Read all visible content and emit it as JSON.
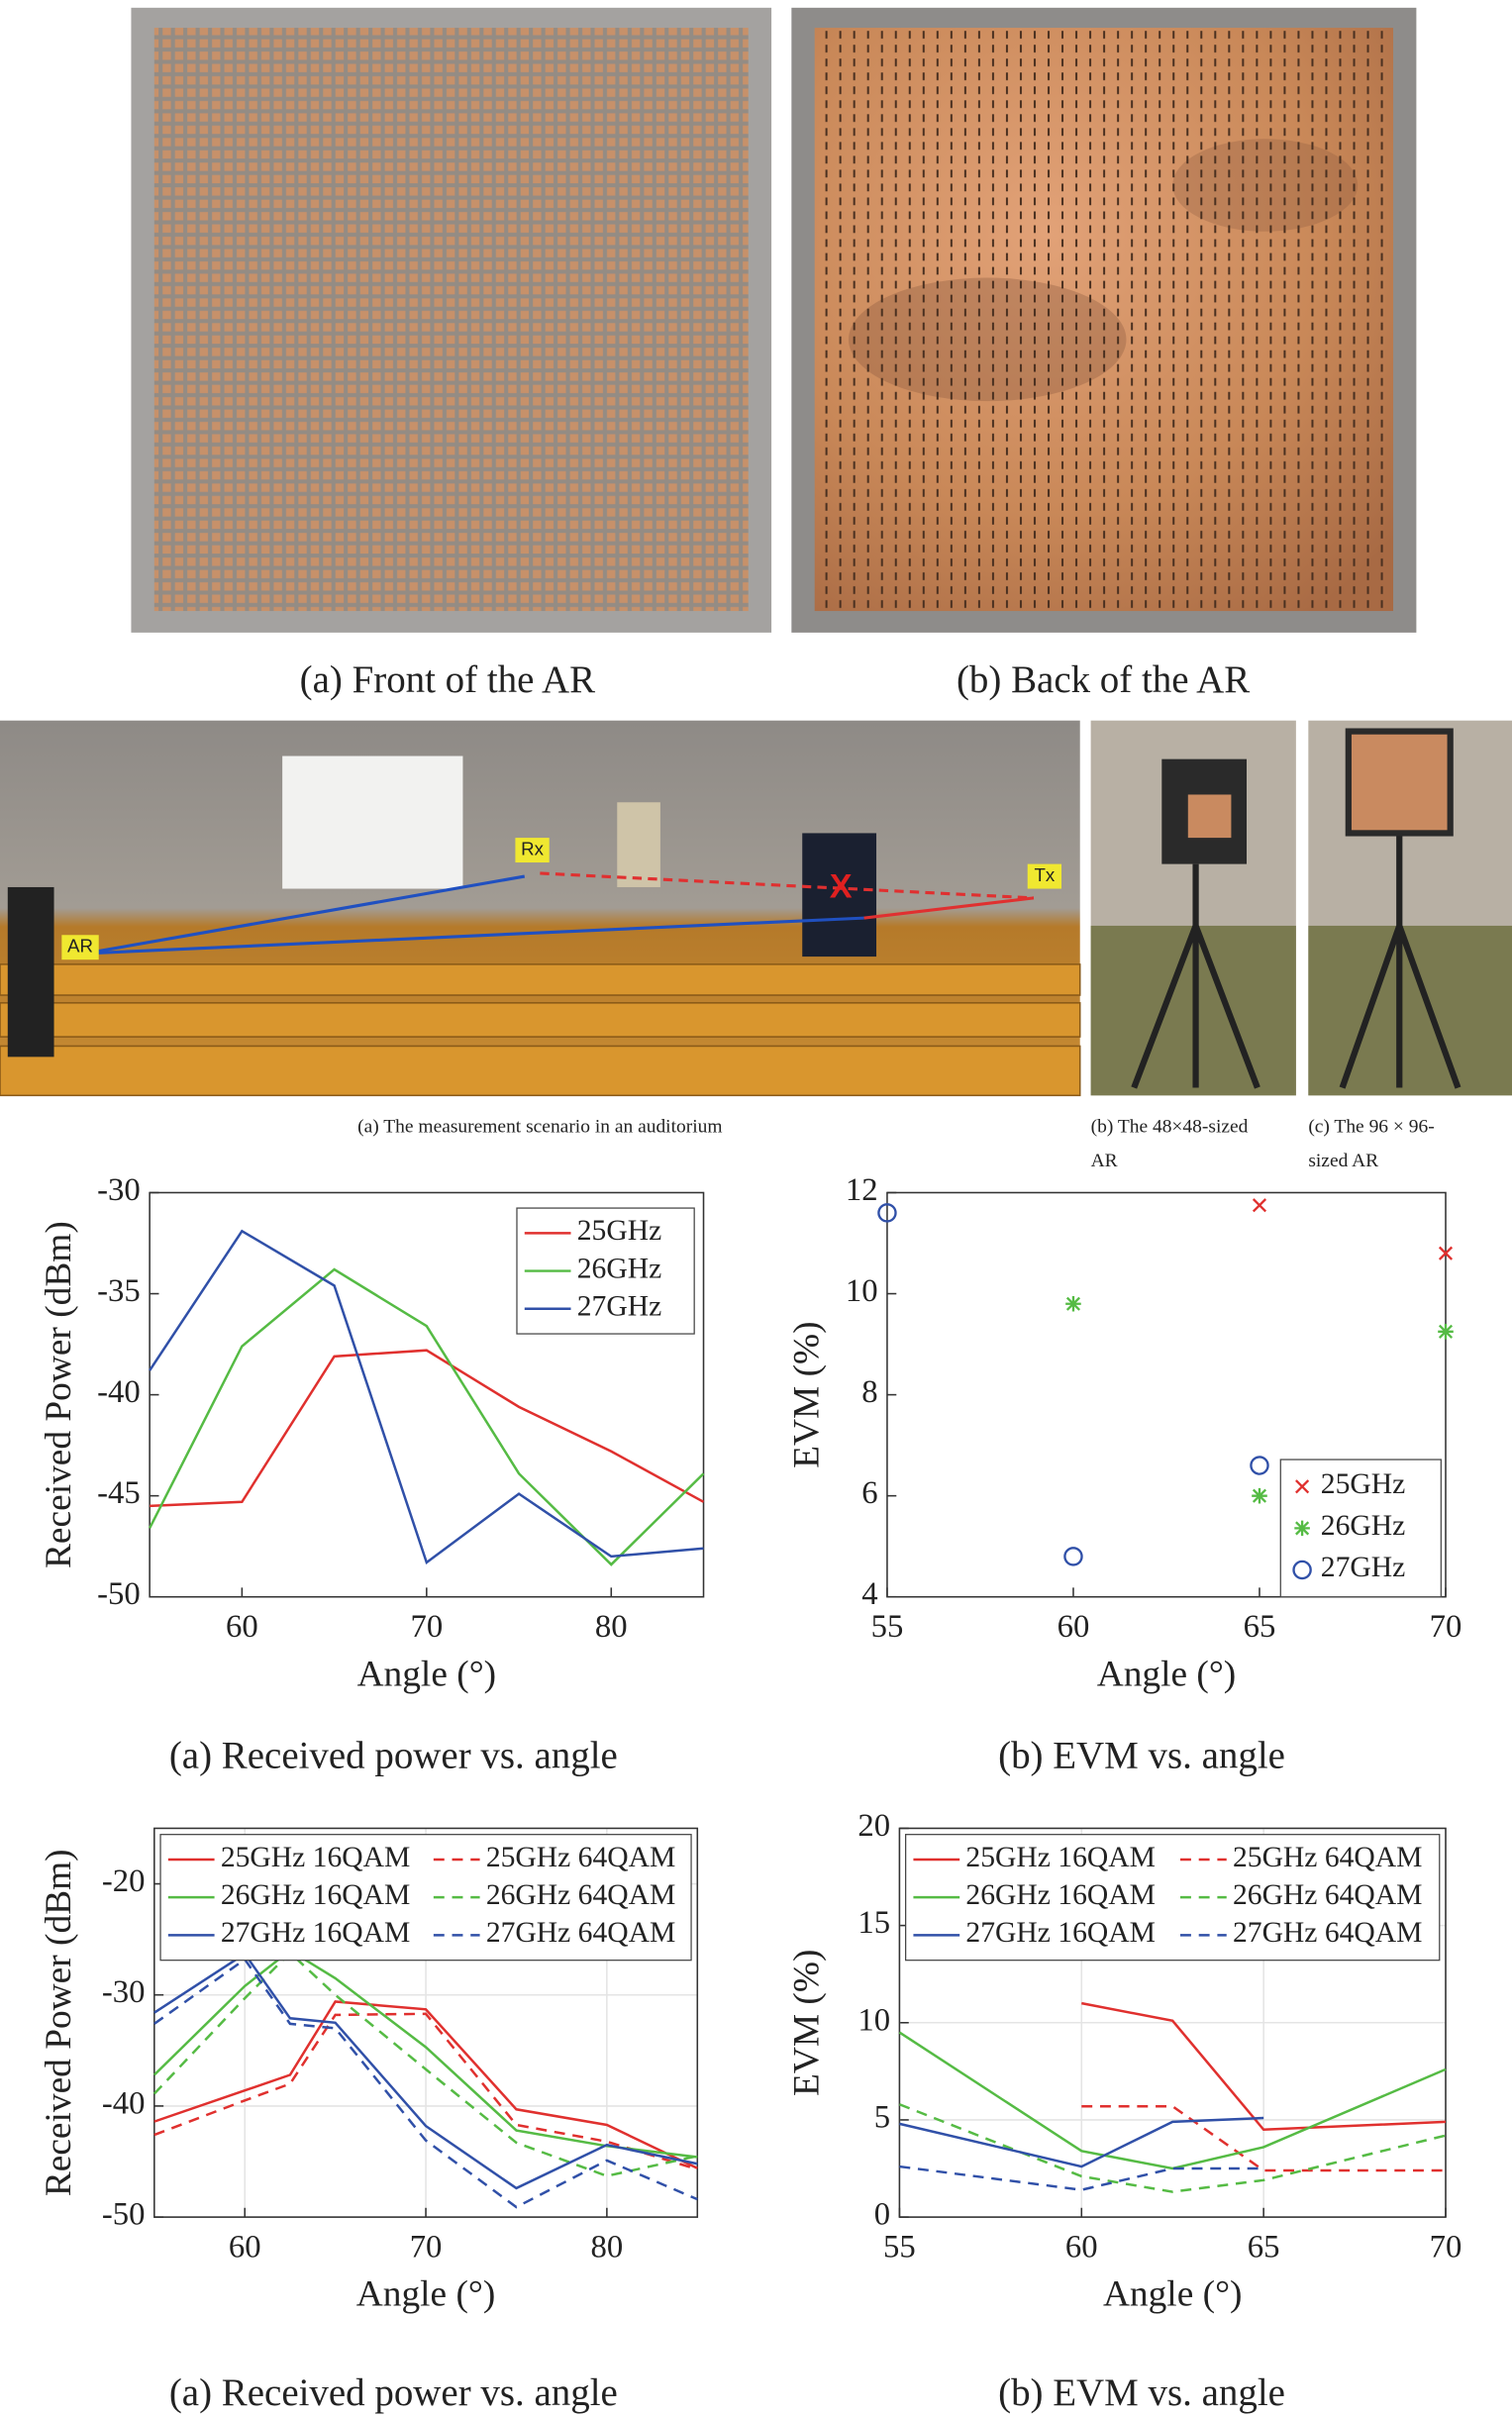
{
  "photos": {
    "front_caption": "(a) Front of the AR",
    "back_caption": "(b) Back of the AR",
    "scenario_caption": "(a) The measurement scenario in an auditorium",
    "small_ar_caption": [
      "(b) The 48×48-sized",
      "AR"
    ],
    "large_ar_caption": [
      "(c) The 96 × 96-",
      "sized AR"
    ],
    "scenario_labels": [
      "AR",
      "Rx",
      "Tx",
      "X"
    ]
  },
  "chart_data": [
    {
      "type": "line",
      "caption": "(a) Received power vs. angle",
      "xlabel": "Angle (°)",
      "ylabel": "Received Power (dBm)",
      "x": [
        55,
        60,
        65,
        70,
        75,
        80,
        85
      ],
      "xlim": [
        55,
        85
      ],
      "xticks": [
        60,
        70,
        80
      ],
      "ylim": [
        -50,
        -30
      ],
      "yticks": [
        -50,
        -45,
        -40,
        -35,
        -30
      ],
      "grid": false,
      "legend": "upper right",
      "series": [
        {
          "name": "25GHz",
          "color": "#e0302e",
          "values": [
            -45.5,
            -45.3,
            -38.1,
            -37.8,
            -40.6,
            -42.8,
            -45.3
          ]
        },
        {
          "name": "26GHz",
          "color": "#55bb44",
          "values": [
            -46.6,
            -37.6,
            -33.8,
            -36.6,
            -43.9,
            -48.4,
            -43.9
          ]
        },
        {
          "name": "27GHz",
          "color": "#3050a8",
          "values": [
            -38.8,
            -31.9,
            -34.6,
            -48.3,
            -44.9,
            -48.0,
            -47.6
          ]
        }
      ]
    },
    {
      "type": "scatter",
      "caption": "(b) EVM vs. angle",
      "xlabel": "Angle (°)",
      "ylabel": "EVM (%)",
      "xlim": [
        55,
        70
      ],
      "xticks": [
        55,
        60,
        65,
        70
      ],
      "ylim": [
        4,
        12
      ],
      "yticks": [
        4,
        6,
        8,
        10,
        12
      ],
      "grid": false,
      "legend": "lower right",
      "series": [
        {
          "name": "25GHz",
          "color": "#e0302e",
          "marker": "x",
          "x": [
            65,
            70
          ],
          "values": [
            11.75,
            10.8
          ]
        },
        {
          "name": "26GHz",
          "color": "#55bb44",
          "marker": "*",
          "x": [
            60,
            65,
            70
          ],
          "values": [
            9.8,
            6.0,
            9.25
          ]
        },
        {
          "name": "27GHz",
          "color": "#3050a8",
          "marker": "o",
          "x": [
            55,
            60,
            65
          ],
          "values": [
            11.6,
            4.8,
            6.6
          ]
        }
      ]
    },
    {
      "type": "line",
      "caption": "(a) Received power vs. angle",
      "xlabel": "Angle (°)",
      "ylabel": "Received Power (dBm)",
      "x": [
        55,
        60,
        62.5,
        65,
        70,
        75,
        80,
        85
      ],
      "xlim": [
        55,
        85
      ],
      "xticks": [
        60,
        70,
        80
      ],
      "ylim": [
        -50,
        -15
      ],
      "yticks": [
        -50,
        -40,
        -30,
        -20
      ],
      "grid": true,
      "legend": "upper center",
      "legend_columns": 2,
      "series": [
        {
          "name": "25GHz 16QAM",
          "color": "#e0302e",
          "dash": false,
          "values": [
            -41.4,
            -38.6,
            -37.2,
            -30.6,
            -31.3,
            -40.3,
            -41.7,
            -45.6
          ]
        },
        {
          "name": "25GHz 64QAM",
          "color": "#e0302e",
          "dash": true,
          "values": [
            -42.6,
            -39.5,
            -38.0,
            -31.8,
            -31.7,
            -41.7,
            -43.2,
            -45.7
          ]
        },
        {
          "name": "26GHz 16QAM",
          "color": "#55bb44",
          "dash": false,
          "values": [
            -37.2,
            -29.2,
            -26.0,
            -28.5,
            -34.7,
            -42.2,
            -43.6,
            -44.6
          ]
        },
        {
          "name": "26GHz 64QAM",
          "color": "#55bb44",
          "dash": true,
          "values": [
            -38.9,
            -30.3,
            -26.2,
            -30.0,
            -36.7,
            -43.3,
            -46.3,
            -44.5
          ]
        },
        {
          "name": "27GHz 16QAM",
          "color": "#3050a8",
          "dash": false,
          "values": [
            -31.6,
            -26.3,
            -32.1,
            -32.5,
            -41.8,
            -47.4,
            -43.5,
            -45.2
          ]
        },
        {
          "name": "27GHz 64QAM",
          "color": "#3050a8",
          "dash": true,
          "values": [
            -32.6,
            -26.8,
            -32.6,
            -33.0,
            -43.1,
            -49.1,
            -44.9,
            -48.4
          ]
        }
      ]
    },
    {
      "type": "line",
      "caption": "(b) EVM vs. angle",
      "xlabel": "Angle (°)",
      "ylabel": "EVM (%)",
      "x": [
        55,
        60,
        62.5,
        65,
        70
      ],
      "xlim": [
        55,
        70
      ],
      "xticks": [
        55,
        60,
        65,
        70
      ],
      "ylim": [
        0,
        20
      ],
      "yticks": [
        0,
        5,
        10,
        15,
        20
      ],
      "grid": true,
      "legend": "upper center",
      "legend_columns": 2,
      "series": [
        {
          "name": "25GHz 16QAM",
          "color": "#e0302e",
          "dash": false,
          "values": [
            null,
            11.0,
            10.1,
            4.5,
            4.9
          ]
        },
        {
          "name": "25GHz 64QAM",
          "color": "#e0302e",
          "dash": true,
          "values": [
            null,
            5.7,
            5.7,
            2.4,
            2.4
          ]
        },
        {
          "name": "26GHz 16QAM",
          "color": "#55bb44",
          "dash": false,
          "values": [
            9.5,
            3.4,
            2.5,
            3.6,
            7.6
          ]
        },
        {
          "name": "26GHz 64QAM",
          "color": "#55bb44",
          "dash": true,
          "values": [
            5.8,
            2.1,
            1.3,
            1.9,
            4.2
          ]
        },
        {
          "name": "27GHz 16QAM",
          "color": "#3050a8",
          "dash": false,
          "values": [
            4.8,
            2.6,
            4.9,
            5.1,
            null
          ]
        },
        {
          "name": "27GHz 64QAM",
          "color": "#3050a8",
          "dash": true,
          "values": [
            2.6,
            1.4,
            2.5,
            2.5,
            null
          ]
        }
      ]
    }
  ]
}
